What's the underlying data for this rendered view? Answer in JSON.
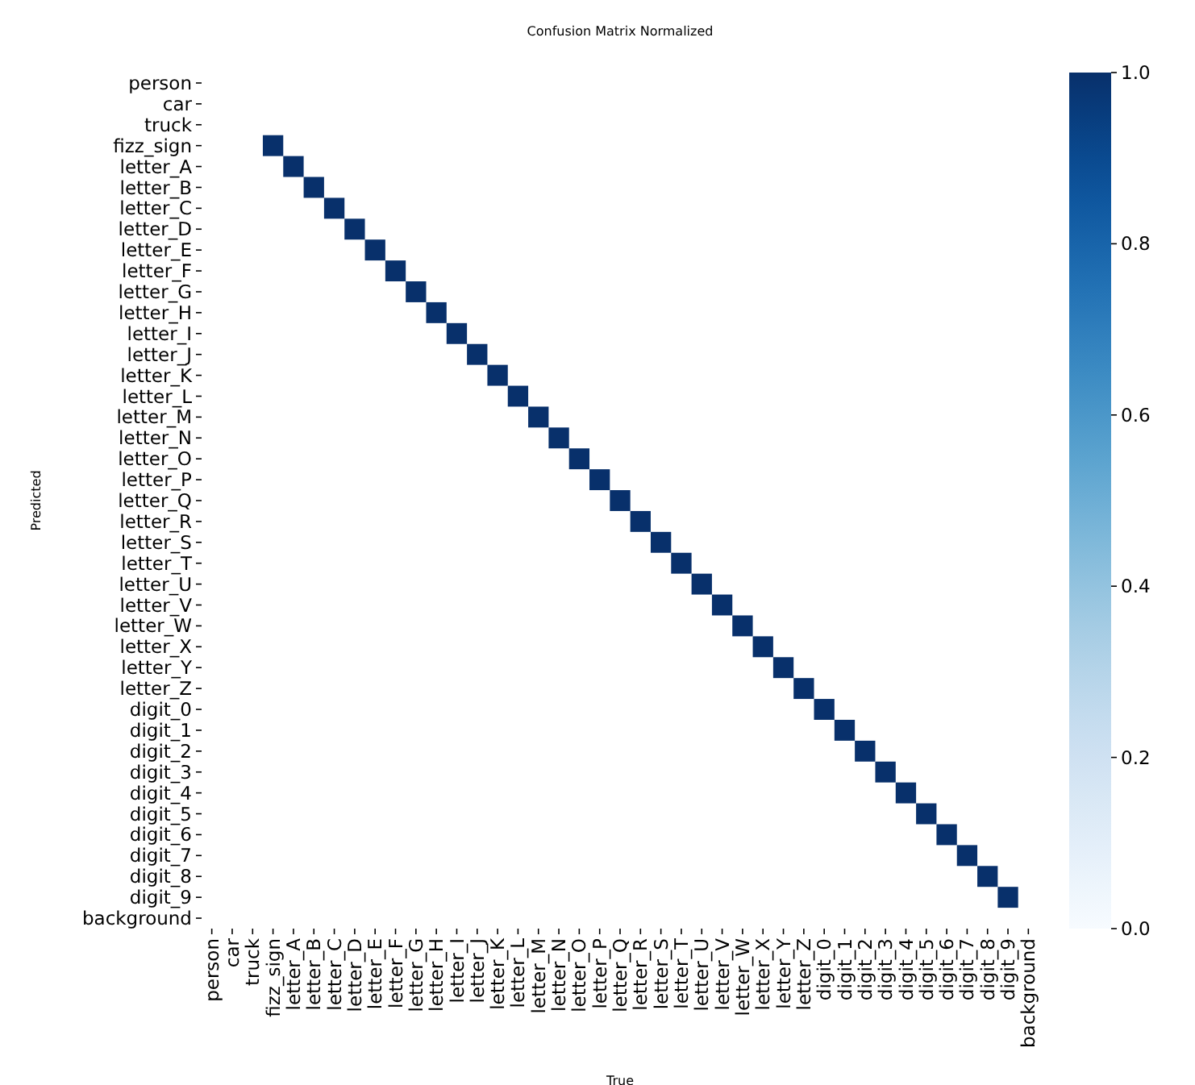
{
  "chart_data": {
    "type": "heatmap",
    "title": "Confusion Matrix Normalized",
    "xlabel": "True",
    "ylabel": "Predicted",
    "categories": [
      "person",
      "car",
      "truck",
      "fizz_sign",
      "letter_A",
      "letter_B",
      "letter_C",
      "letter_D",
      "letter_E",
      "letter_F",
      "letter_G",
      "letter_H",
      "letter_I",
      "letter_J",
      "letter_K",
      "letter_L",
      "letter_M",
      "letter_N",
      "letter_O",
      "letter_P",
      "letter_Q",
      "letter_R",
      "letter_S",
      "letter_T",
      "letter_U",
      "letter_V",
      "letter_W",
      "letter_X",
      "letter_Y",
      "letter_Z",
      "digit_0",
      "digit_1",
      "digit_2",
      "digit_3",
      "digit_4",
      "digit_5",
      "digit_6",
      "digit_7",
      "digit_8",
      "digit_9",
      "background"
    ],
    "y_categories": [
      "person",
      "car",
      "truck",
      "fizz_sign",
      "letter_A",
      "letter_B",
      "letter_C",
      "letter_D",
      "letter_E",
      "letter_F",
      "letter_G",
      "letter_H",
      "letter_I",
      "letter_J",
      "letter_K",
      "letter_L",
      "letter_M",
      "letter_N",
      "letter_O",
      "letter_P",
      "letter_Q",
      "letter_R",
      "letter_S",
      "letter_T",
      "letter_U",
      "letter_V",
      "letter_W",
      "letter_X",
      "letter_Y",
      "letter_Z",
      "digit_0",
      "digit_1",
      "digit_2",
      "digit_3",
      "digit_4",
      "digit_5",
      "digit_6",
      "digit_7",
      "digit_8",
      "digit_9",
      "background"
    ],
    "cells": [
      [
        null,
        null,
        null,
        null,
        null,
        null,
        null,
        null,
        null,
        null,
        null,
        null,
        null,
        null,
        null,
        null,
        null,
        null,
        null,
        null,
        null,
        null,
        null,
        null,
        null,
        null,
        null,
        null,
        null,
        null,
        null,
        null,
        null,
        null,
        null,
        null,
        null,
        null,
        null,
        null,
        null
      ],
      [
        null,
        null,
        null,
        null,
        null,
        null,
        null,
        null,
        null,
        null,
        null,
        null,
        null,
        null,
        null,
        null,
        null,
        null,
        null,
        null,
        null,
        null,
        null,
        null,
        null,
        null,
        null,
        null,
        null,
        null,
        null,
        null,
        null,
        null,
        null,
        null,
        null,
        null,
        null,
        null,
        null
      ],
      [
        null,
        null,
        null,
        null,
        null,
        null,
        null,
        null,
        null,
        null,
        null,
        null,
        null,
        null,
        null,
        null,
        null,
        null,
        null,
        null,
        null,
        null,
        null,
        null,
        null,
        null,
        null,
        null,
        null,
        null,
        null,
        null,
        null,
        null,
        null,
        null,
        null,
        null,
        null,
        null,
        null
      ],
      [
        null,
        null,
        null,
        1,
        null,
        null,
        null,
        null,
        null,
        null,
        null,
        null,
        null,
        null,
        null,
        null,
        null,
        null,
        null,
        null,
        null,
        null,
        null,
        null,
        null,
        null,
        null,
        null,
        null,
        null,
        null,
        null,
        null,
        null,
        null,
        null,
        null,
        null,
        null,
        null,
        null
      ],
      [
        null,
        null,
        null,
        null,
        1,
        null,
        null,
        null,
        null,
        null,
        null,
        null,
        null,
        null,
        null,
        null,
        null,
        null,
        null,
        null,
        null,
        null,
        null,
        null,
        null,
        null,
        null,
        null,
        null,
        null,
        null,
        null,
        null,
        null,
        null,
        null,
        null,
        null,
        null,
        null,
        null
      ],
      [
        null,
        null,
        null,
        null,
        null,
        1,
        null,
        null,
        null,
        null,
        null,
        null,
        null,
        null,
        null,
        null,
        null,
        null,
        null,
        null,
        null,
        null,
        null,
        null,
        null,
        null,
        null,
        null,
        null,
        null,
        null,
        null,
        null,
        null,
        null,
        null,
        null,
        null,
        null,
        null,
        null
      ],
      [
        null,
        null,
        null,
        null,
        null,
        null,
        1,
        null,
        null,
        null,
        null,
        null,
        null,
        null,
        null,
        null,
        null,
        null,
        null,
        null,
        null,
        null,
        null,
        null,
        null,
        null,
        null,
        null,
        null,
        null,
        null,
        null,
        null,
        null,
        null,
        null,
        null,
        null,
        null,
        null,
        null
      ],
      [
        null,
        null,
        null,
        null,
        null,
        null,
        null,
        1,
        null,
        null,
        null,
        null,
        null,
        null,
        null,
        null,
        null,
        null,
        null,
        null,
        null,
        null,
        null,
        null,
        null,
        null,
        null,
        null,
        null,
        null,
        null,
        null,
        null,
        null,
        null,
        null,
        null,
        null,
        null,
        null,
        null
      ],
      [
        null,
        null,
        null,
        null,
        null,
        null,
        null,
        null,
        1,
        null,
        null,
        null,
        null,
        null,
        null,
        null,
        null,
        null,
        null,
        null,
        null,
        null,
        null,
        null,
        null,
        null,
        null,
        null,
        null,
        null,
        null,
        null,
        null,
        null,
        null,
        null,
        null,
        null,
        null,
        null,
        null
      ],
      [
        null,
        null,
        null,
        null,
        null,
        null,
        null,
        null,
        null,
        1,
        null,
        null,
        null,
        null,
        null,
        null,
        null,
        null,
        null,
        null,
        null,
        null,
        null,
        null,
        null,
        null,
        null,
        null,
        null,
        null,
        null,
        null,
        null,
        null,
        null,
        null,
        null,
        null,
        null,
        null,
        null
      ],
      [
        null,
        null,
        null,
        null,
        null,
        null,
        null,
        null,
        null,
        null,
        1,
        null,
        null,
        null,
        null,
        null,
        null,
        null,
        null,
        null,
        null,
        null,
        null,
        null,
        null,
        null,
        null,
        null,
        null,
        null,
        null,
        null,
        null,
        null,
        null,
        null,
        null,
        null,
        null,
        null,
        null
      ],
      [
        null,
        null,
        null,
        null,
        null,
        null,
        null,
        null,
        null,
        null,
        null,
        1,
        null,
        null,
        null,
        null,
        null,
        null,
        null,
        null,
        null,
        null,
        null,
        null,
        null,
        null,
        null,
        null,
        null,
        null,
        null,
        null,
        null,
        null,
        null,
        null,
        null,
        null,
        null,
        null,
        null
      ],
      [
        null,
        null,
        null,
        null,
        null,
        null,
        null,
        null,
        null,
        null,
        null,
        null,
        1,
        null,
        null,
        null,
        null,
        null,
        null,
        null,
        null,
        null,
        null,
        null,
        null,
        null,
        null,
        null,
        null,
        null,
        null,
        null,
        null,
        null,
        null,
        null,
        null,
        null,
        null,
        null,
        null
      ],
      [
        null,
        null,
        null,
        null,
        null,
        null,
        null,
        null,
        null,
        null,
        null,
        null,
        null,
        1,
        null,
        null,
        null,
        null,
        null,
        null,
        null,
        null,
        null,
        null,
        null,
        null,
        null,
        null,
        null,
        null,
        null,
        null,
        null,
        null,
        null,
        null,
        null,
        null,
        null,
        null,
        null
      ],
      [
        null,
        null,
        null,
        null,
        null,
        null,
        null,
        null,
        null,
        null,
        null,
        null,
        null,
        null,
        1,
        null,
        null,
        null,
        null,
        null,
        null,
        null,
        null,
        null,
        null,
        null,
        null,
        null,
        null,
        null,
        null,
        null,
        null,
        null,
        null,
        null,
        null,
        null,
        null,
        null,
        null
      ],
      [
        null,
        null,
        null,
        null,
        null,
        null,
        null,
        null,
        null,
        null,
        null,
        null,
        null,
        null,
        null,
        1,
        null,
        null,
        null,
        null,
        null,
        null,
        null,
        null,
        null,
        null,
        null,
        null,
        null,
        null,
        null,
        null,
        null,
        null,
        null,
        null,
        null,
        null,
        null,
        null,
        null
      ],
      [
        null,
        null,
        null,
        null,
        null,
        null,
        null,
        null,
        null,
        null,
        null,
        null,
        null,
        null,
        null,
        null,
        1,
        null,
        null,
        null,
        null,
        null,
        null,
        null,
        null,
        null,
        null,
        null,
        null,
        null,
        null,
        null,
        null,
        null,
        null,
        null,
        null,
        null,
        null,
        null,
        null
      ],
      [
        null,
        null,
        null,
        null,
        null,
        null,
        null,
        null,
        null,
        null,
        null,
        null,
        null,
        null,
        null,
        null,
        null,
        1,
        null,
        null,
        null,
        null,
        null,
        null,
        null,
        null,
        null,
        null,
        null,
        null,
        null,
        null,
        null,
        null,
        null,
        null,
        null,
        null,
        null,
        null,
        null
      ],
      [
        null,
        null,
        null,
        null,
        null,
        null,
        null,
        null,
        null,
        null,
        null,
        null,
        null,
        null,
        null,
        null,
        null,
        null,
        1,
        null,
        null,
        null,
        null,
        null,
        null,
        null,
        null,
        null,
        null,
        null,
        null,
        null,
        null,
        null,
        null,
        null,
        null,
        null,
        null,
        null,
        null
      ],
      [
        null,
        null,
        null,
        null,
        null,
        null,
        null,
        null,
        null,
        null,
        null,
        null,
        null,
        null,
        null,
        null,
        null,
        null,
        null,
        1,
        null,
        null,
        null,
        null,
        null,
        null,
        null,
        null,
        null,
        null,
        null,
        null,
        null,
        null,
        null,
        null,
        null,
        null,
        null,
        null,
        null
      ],
      [
        null,
        null,
        null,
        null,
        null,
        null,
        null,
        null,
        null,
        null,
        null,
        null,
        null,
        null,
        null,
        null,
        null,
        null,
        null,
        null,
        1,
        null,
        null,
        null,
        null,
        null,
        null,
        null,
        null,
        null,
        null,
        null,
        null,
        null,
        null,
        null,
        null,
        null,
        null,
        null,
        null
      ],
      [
        null,
        null,
        null,
        null,
        null,
        null,
        null,
        null,
        null,
        null,
        null,
        null,
        null,
        null,
        null,
        null,
        null,
        null,
        null,
        null,
        null,
        1,
        null,
        null,
        null,
        null,
        null,
        null,
        null,
        null,
        null,
        null,
        null,
        null,
        null,
        null,
        null,
        null,
        null,
        null,
        null
      ],
      [
        null,
        null,
        null,
        null,
        null,
        null,
        null,
        null,
        null,
        null,
        null,
        null,
        null,
        null,
        null,
        null,
        null,
        null,
        null,
        null,
        null,
        null,
        1,
        null,
        null,
        null,
        null,
        null,
        null,
        null,
        null,
        null,
        null,
        null,
        null,
        null,
        null,
        null,
        null,
        null,
        null
      ],
      [
        null,
        null,
        null,
        null,
        null,
        null,
        null,
        null,
        null,
        null,
        null,
        null,
        null,
        null,
        null,
        null,
        null,
        null,
        null,
        null,
        null,
        null,
        null,
        1,
        null,
        null,
        null,
        null,
        null,
        null,
        null,
        null,
        null,
        null,
        null,
        null,
        null,
        null,
        null,
        null,
        null
      ],
      [
        null,
        null,
        null,
        null,
        null,
        null,
        null,
        null,
        null,
        null,
        null,
        null,
        null,
        null,
        null,
        null,
        null,
        null,
        null,
        null,
        null,
        null,
        null,
        null,
        1,
        null,
        null,
        null,
        null,
        null,
        null,
        null,
        null,
        null,
        null,
        null,
        null,
        null,
        null,
        null,
        null
      ],
      [
        null,
        null,
        null,
        null,
        null,
        null,
        null,
        null,
        null,
        null,
        null,
        null,
        null,
        null,
        null,
        null,
        null,
        null,
        null,
        null,
        null,
        null,
        null,
        null,
        null,
        1,
        null,
        null,
        null,
        null,
        null,
        null,
        null,
        null,
        null,
        null,
        null,
        null,
        null,
        null,
        null
      ],
      [
        null,
        null,
        null,
        null,
        null,
        null,
        null,
        null,
        null,
        null,
        null,
        null,
        null,
        null,
        null,
        null,
        null,
        null,
        null,
        null,
        null,
        null,
        null,
        null,
        null,
        null,
        1,
        null,
        null,
        null,
        null,
        null,
        null,
        null,
        null,
        null,
        null,
        null,
        null,
        null,
        null
      ],
      [
        null,
        null,
        null,
        null,
        null,
        null,
        null,
        null,
        null,
        null,
        null,
        null,
        null,
        null,
        null,
        null,
        null,
        null,
        null,
        null,
        null,
        null,
        null,
        null,
        null,
        null,
        null,
        1,
        null,
        null,
        null,
        null,
        null,
        null,
        null,
        null,
        null,
        null,
        null,
        null,
        null
      ],
      [
        null,
        null,
        null,
        null,
        null,
        null,
        null,
        null,
        null,
        null,
        null,
        null,
        null,
        null,
        null,
        null,
        null,
        null,
        null,
        null,
        null,
        null,
        null,
        null,
        null,
        null,
        null,
        null,
        1,
        null,
        null,
        null,
        null,
        null,
        null,
        null,
        null,
        null,
        null,
        null,
        null
      ],
      [
        null,
        null,
        null,
        null,
        null,
        null,
        null,
        null,
        null,
        null,
        null,
        null,
        null,
        null,
        null,
        null,
        null,
        null,
        null,
        null,
        null,
        null,
        null,
        null,
        null,
        null,
        null,
        null,
        null,
        1,
        null,
        null,
        null,
        null,
        null,
        null,
        null,
        null,
        null,
        null,
        null
      ],
      [
        null,
        null,
        null,
        null,
        null,
        null,
        null,
        null,
        null,
        null,
        null,
        null,
        null,
        null,
        null,
        null,
        null,
        null,
        null,
        null,
        null,
        null,
        null,
        null,
        null,
        null,
        null,
        null,
        null,
        null,
        1,
        null,
        null,
        null,
        null,
        null,
        null,
        null,
        null,
        null,
        null
      ],
      [
        null,
        null,
        null,
        null,
        null,
        null,
        null,
        null,
        null,
        null,
        null,
        null,
        null,
        null,
        null,
        null,
        null,
        null,
        null,
        null,
        null,
        null,
        null,
        null,
        null,
        null,
        null,
        null,
        null,
        null,
        null,
        1,
        null,
        null,
        null,
        null,
        null,
        null,
        null,
        null,
        null
      ],
      [
        null,
        null,
        null,
        null,
        null,
        null,
        null,
        null,
        null,
        null,
        null,
        null,
        null,
        null,
        null,
        null,
        null,
        null,
        null,
        null,
        null,
        null,
        null,
        null,
        null,
        null,
        null,
        null,
        null,
        null,
        null,
        null,
        1,
        null,
        null,
        null,
        null,
        null,
        null,
        null,
        null
      ],
      [
        null,
        null,
        null,
        null,
        null,
        null,
        null,
        null,
        null,
        null,
        null,
        null,
        null,
        null,
        null,
        null,
        null,
        null,
        null,
        null,
        null,
        null,
        null,
        null,
        null,
        null,
        null,
        null,
        null,
        null,
        null,
        null,
        null,
        1,
        null,
        null,
        null,
        null,
        null,
        null,
        null
      ],
      [
        null,
        null,
        null,
        null,
        null,
        null,
        null,
        null,
        null,
        null,
        null,
        null,
        null,
        null,
        null,
        null,
        null,
        null,
        null,
        null,
        null,
        null,
        null,
        null,
        null,
        null,
        null,
        null,
        null,
        null,
        null,
        null,
        null,
        null,
        1,
        null,
        null,
        null,
        null,
        null,
        null
      ],
      [
        null,
        null,
        null,
        null,
        null,
        null,
        null,
        null,
        null,
        null,
        null,
        null,
        null,
        null,
        null,
        null,
        null,
        null,
        null,
        null,
        null,
        null,
        null,
        null,
        null,
        null,
        null,
        null,
        null,
        null,
        null,
        null,
        null,
        null,
        null,
        1,
        null,
        null,
        null,
        null,
        null
      ],
      [
        null,
        null,
        null,
        null,
        null,
        null,
        null,
        null,
        null,
        null,
        null,
        null,
        null,
        null,
        null,
        null,
        null,
        null,
        null,
        null,
        null,
        null,
        null,
        null,
        null,
        null,
        null,
        null,
        null,
        null,
        null,
        null,
        null,
        null,
        null,
        null,
        1,
        null,
        null,
        null,
        null
      ],
      [
        null,
        null,
        null,
        null,
        null,
        null,
        null,
        null,
        null,
        null,
        null,
        null,
        null,
        null,
        null,
        null,
        null,
        null,
        null,
        null,
        null,
        null,
        null,
        null,
        null,
        null,
        null,
        null,
        null,
        null,
        null,
        null,
        null,
        null,
        null,
        null,
        null,
        1,
        null,
        null,
        null
      ],
      [
        null,
        null,
        null,
        null,
        null,
        null,
        null,
        null,
        null,
        null,
        null,
        null,
        null,
        null,
        null,
        null,
        null,
        null,
        null,
        null,
        null,
        null,
        null,
        null,
        null,
        null,
        null,
        null,
        null,
        null,
        null,
        null,
        null,
        null,
        null,
        null,
        null,
        null,
        1,
        null,
        null
      ],
      [
        null,
        null,
        null,
        null,
        null,
        null,
        null,
        null,
        null,
        null,
        null,
        null,
        null,
        null,
        null,
        null,
        null,
        null,
        null,
        null,
        null,
        null,
        null,
        null,
        null,
        null,
        null,
        null,
        null,
        null,
        null,
        null,
        null,
        null,
        null,
        null,
        null,
        null,
        null,
        1,
        null
      ],
      [
        null,
        null,
        null,
        null,
        null,
        null,
        null,
        null,
        null,
        null,
        null,
        null,
        null,
        null,
        null,
        null,
        null,
        null,
        null,
        null,
        null,
        null,
        null,
        null,
        null,
        null,
        null,
        null,
        null,
        null,
        null,
        null,
        null,
        null,
        null,
        null,
        null,
        null,
        null,
        null,
        null
      ]
    ],
    "clim": [
      0,
      1
    ],
    "cticks": [
      {
        "value": 0,
        "label": "0.0"
      },
      {
        "value": 0.2,
        "label": "0.2"
      },
      {
        "value": 0.4,
        "label": "0.4"
      },
      {
        "value": 0.6,
        "label": "0.6"
      },
      {
        "value": 0.8,
        "label": "0.8"
      },
      {
        "value": 1,
        "label": "1.0"
      }
    ]
  }
}
